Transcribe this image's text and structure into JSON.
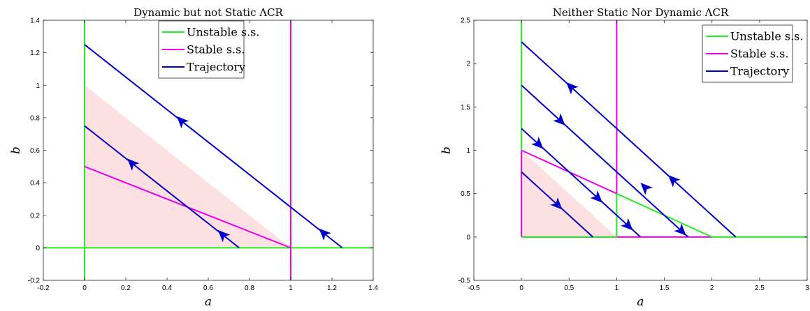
{
  "chart_data": [
    {
      "type": "line",
      "title": "Dynamic but not Static ΛCR",
      "xlabel": "a",
      "ylabel": "b",
      "xlim": [
        -0.2,
        1.4
      ],
      "ylim": [
        -0.2,
        1.4
      ],
      "xticks": [
        -0.2,
        0,
        0.2,
        0.4,
        0.6,
        0.8,
        1,
        1.2,
        1.4
      ],
      "xtick_labels": [
        "-0.2",
        "0",
        "0.2",
        "0.4",
        "0.6",
        "0.8",
        "1",
        "1.2",
        "1.4"
      ],
      "yticks": [
        -0.2,
        0,
        0.2,
        0.4,
        0.6,
        0.8,
        1,
        1.2,
        1.4
      ],
      "ytick_labels": [
        "-0.2",
        "0",
        "0.2",
        "0.4",
        "0.6",
        "0.8",
        "1",
        "1.2",
        "1.4"
      ],
      "grid": false,
      "legend_position": "top-right",
      "legend": [
        {
          "label": "Unstable s.s.",
          "color": "#22ee22"
        },
        {
          "label": "Stable s.s.",
          "color": "#ee00ee"
        },
        {
          "label": "Trajectory",
          "color": "#0000cc"
        }
      ],
      "shaded_region": {
        "points": [
          [
            0,
            0
          ],
          [
            0,
            1
          ],
          [
            1,
            0
          ]
        ],
        "color": "#fde0e2"
      },
      "series": [
        {
          "kind": "unstable",
          "x": [
            -0.2,
            1.4
          ],
          "y": [
            0,
            0
          ]
        },
        {
          "kind": "unstable",
          "x": [
            0,
            0
          ],
          "y": [
            -0.2,
            1.4
          ]
        },
        {
          "kind": "stable",
          "x": [
            1,
            1
          ],
          "y": [
            -0.2,
            1.4
          ]
        },
        {
          "kind": "stable",
          "x": [
            0,
            1
          ],
          "y": [
            0.5,
            0
          ]
        },
        {
          "kind": "trajectory",
          "x": [
            0,
            1.25
          ],
          "y": [
            1.25,
            0
          ]
        },
        {
          "kind": "trajectory",
          "x": [
            0,
            0.75
          ],
          "y": [
            0.75,
            0
          ]
        }
      ],
      "arrows": [
        {
          "x": 0.47,
          "y": 0.78,
          "direction": "up-left"
        },
        {
          "x": 1.16,
          "y": 0.09,
          "direction": "up-left"
        },
        {
          "x": 0.23,
          "y": 0.52,
          "direction": "up-left"
        },
        {
          "x": 0.67,
          "y": 0.08,
          "direction": "up-left"
        }
      ]
    },
    {
      "type": "line",
      "title": "Neither Static Nor Dynamic ΛCR",
      "xlabel": "a",
      "ylabel": "b",
      "xlim": [
        -0.5,
        3
      ],
      "ylim": [
        -0.5,
        2.5
      ],
      "xticks": [
        -0.5,
        0,
        0.5,
        1,
        1.5,
        2,
        2.5,
        3
      ],
      "xtick_labels": [
        "-0.5",
        "0",
        "0.5",
        "1",
        "1.5",
        "2",
        "2.5",
        "3"
      ],
      "yticks": [
        -0.5,
        0,
        0.5,
        1,
        1.5,
        2,
        2.5
      ],
      "ytick_labels": [
        "-0.5",
        "0",
        "0.5",
        "1",
        "1.5",
        "2",
        "2.5"
      ],
      "grid": false,
      "legend_position": "top-right",
      "legend": [
        {
          "label": "Unstable s.s.",
          "color": "#22ee22"
        },
        {
          "label": "Stable s.s.",
          "color": "#ee00ee"
        },
        {
          "label": "Trajectory",
          "color": "#0000cc"
        }
      ],
      "shaded_region": {
        "points": [
          [
            0,
            0
          ],
          [
            0,
            1
          ],
          [
            1,
            0
          ]
        ],
        "color": "#fde0e2"
      },
      "series": [
        {
          "kind": "stable",
          "x": [
            0,
            0
          ],
          "y": [
            0,
            1
          ]
        },
        {
          "kind": "stable",
          "x": [
            0,
            2
          ],
          "y": [
            0,
            0
          ]
        },
        {
          "kind": "stable",
          "x": [
            0,
            1
          ],
          "y": [
            1,
            0.5
          ]
        },
        {
          "kind": "stable",
          "x": [
            1,
            1
          ],
          "y": [
            0.5,
            2.5
          ]
        },
        {
          "kind": "unstable",
          "x": [
            0,
            0
          ],
          "y": [
            1,
            2.5
          ]
        },
        {
          "kind": "unstable",
          "x": [
            0,
            1
          ],
          "y": [
            0,
            0
          ]
        },
        {
          "kind": "unstable",
          "x": [
            1,
            1
          ],
          "y": [
            0,
            0.5
          ]
        },
        {
          "kind": "unstable",
          "x": [
            1,
            2
          ],
          "y": [
            0.5,
            0
          ]
        },
        {
          "kind": "unstable",
          "x": [
            2,
            3
          ],
          "y": [
            0,
            0
          ]
        },
        {
          "kind": "trajectory",
          "x": [
            0,
            0.75
          ],
          "y": [
            0.75,
            0
          ]
        },
        {
          "kind": "trajectory",
          "x": [
            0,
            1.25
          ],
          "y": [
            1.25,
            0
          ]
        },
        {
          "kind": "trajectory",
          "x": [
            0,
            1.75
          ],
          "y": [
            1.75,
            0
          ]
        },
        {
          "kind": "trajectory",
          "x": [
            0,
            2.25
          ],
          "y": [
            2.25,
            0
          ]
        }
      ],
      "arrows": [
        {
          "x": 0.38,
          "y": 0.37,
          "direction": "down-right"
        },
        {
          "x": 0.18,
          "y": 1.07,
          "direction": "down-right"
        },
        {
          "x": 0.8,
          "y": 0.45,
          "direction": "down-right"
        },
        {
          "x": 1.12,
          "y": 0.13,
          "direction": "down-right"
        },
        {
          "x": 0.41,
          "y": 1.34,
          "direction": "down-right"
        },
        {
          "x": 1.68,
          "y": 0.07,
          "direction": "down-right"
        },
        {
          "x": 0.52,
          "y": 1.73,
          "direction": "up-left"
        },
        {
          "x": 1.59,
          "y": 0.66,
          "direction": "up-left"
        },
        {
          "x": 1.3,
          "y": 0.57,
          "direction": "up-left"
        }
      ]
    }
  ]
}
